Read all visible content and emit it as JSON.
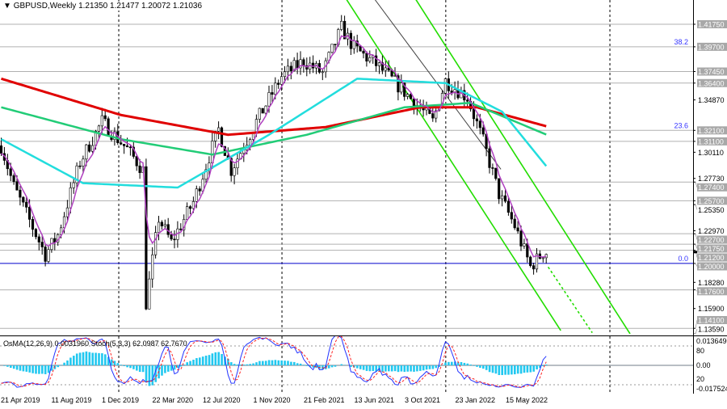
{
  "header": {
    "symbol": "GBPUSD,Weekly",
    "ohlc": "1.21350 1.21477 1.20072 1.21036"
  },
  "oscillator": {
    "title": "OsMA(12,26,9) 0.0031960  Stoch(5,3,3) 62.0987 62.7670",
    "axis_labels": [
      "0.0136490",
      "80",
      "0.00",
      "20",
      "-0.0175240"
    ]
  },
  "colors": {
    "bull": "#ffffff",
    "bear": "#000000",
    "ma_red": "#e00000",
    "ma_green": "#22cc77",
    "ma_cyan": "#22dddd",
    "ma_purple": "#b040c0",
    "channel": "#22dd00",
    "level": "#b0b0b0",
    "zero_line": "#0000cc",
    "hist": "#22c8f0"
  },
  "chart_data": {
    "type": "candlestick",
    "title": "GBPUSD,Weekly",
    "ylim": [
      1.1359,
      1.433
    ],
    "x_unit": "weeks since 21 Apr 2019",
    "time_labels": [
      "21 Apr 2019",
      "11 Aug 2019",
      "1 Dec 2019",
      "22 Mar 2020",
      "12 Jul 2020",
      "1 Nov 2020",
      "21 Feb 2021",
      "13 Jun 2021",
      "3 Oct 2021",
      "23 Jan 2022",
      "15 May 2022"
    ],
    "price_ticks": [
      "1.34870",
      "1.30110",
      "1.27730",
      "1.25350",
      "1.22970",
      "1.18280",
      "1.15900",
      "1.13590"
    ],
    "levels": [
      {
        "price": 1.4175,
        "label": "1.41750"
      },
      {
        "price": 1.397,
        "label": "1.39700"
      },
      {
        "price": 1.3745,
        "label": "1.37450"
      },
      {
        "price": 1.364,
        "label": "1.36400"
      },
      {
        "price": 1.321,
        "label": "1.32100"
      },
      {
        "price": 1.311,
        "label": "1.31100"
      },
      {
        "price": 1.274,
        "label": "1.27400"
      },
      {
        "price": 1.257,
        "label": "1.25700"
      },
      {
        "price": 1.227,
        "label": "1.22700"
      },
      {
        "price": 1.2175,
        "label": "1.21750"
      },
      {
        "price": 1.212,
        "label": "1.21200"
      },
      {
        "price": 1.2,
        "label": "1.20000"
      },
      {
        "price": 1.176,
        "label": "1.17600"
      },
      {
        "price": 1.141,
        "label": "1.14100"
      }
    ],
    "current_price": "1.21036",
    "fib_labels": [
      {
        "price": 1.397,
        "label": "38.2"
      },
      {
        "price": 1.321,
        "label": "23.6"
      },
      {
        "price": 1.2,
        "label": "0.0"
      }
    ],
    "price_path": [
      [
        1,
        1.307
      ],
      [
        5,
        1.27
      ],
      [
        15,
        1.208
      ],
      [
        19,
        1.226
      ],
      [
        26,
        1.292
      ],
      [
        33,
        1.329
      ],
      [
        41,
        1.304
      ],
      [
        46,
        1.285
      ],
      [
        47,
        1.164
      ],
      [
        51,
        1.241
      ],
      [
        55,
        1.219
      ],
      [
        62,
        1.256
      ],
      [
        70,
        1.322
      ],
      [
        74,
        1.285
      ],
      [
        82,
        1.329
      ],
      [
        90,
        1.37
      ],
      [
        97,
        1.384
      ],
      [
        103,
        1.373
      ],
      [
        109,
        1.414
      ],
      [
        113,
        1.396
      ],
      [
        120,
        1.381
      ],
      [
        128,
        1.359
      ],
      [
        133,
        1.344
      ],
      [
        138,
        1.329
      ],
      [
        142,
        1.366
      ],
      [
        149,
        1.351
      ],
      [
        154,
        1.311
      ],
      [
        159,
        1.263
      ],
      [
        164,
        1.234
      ],
      [
        169,
        1.197
      ],
      [
        173,
        1.21
      ]
    ],
    "ma_red": [
      [
        0,
        1.368
      ],
      [
        38,
        1.335
      ],
      [
        72,
        1.317
      ],
      [
        103,
        1.324
      ],
      [
        133,
        1.342
      ],
      [
        151,
        1.342
      ],
      [
        174,
        1.324
      ]
    ],
    "ma_green": [
      [
        0,
        1.342
      ],
      [
        38,
        1.313
      ],
      [
        67,
        1.299
      ],
      [
        97,
        1.317
      ],
      [
        128,
        1.342
      ],
      [
        149,
        1.346
      ],
      [
        174,
        1.316
      ]
    ],
    "ma_cyan": [
      [
        0,
        1.313
      ],
      [
        26,
        1.273
      ],
      [
        56,
        1.269
      ],
      [
        85,
        1.317
      ],
      [
        113,
        1.368
      ],
      [
        141,
        1.364
      ],
      [
        159,
        1.338
      ],
      [
        174,
        1.285
      ]
    ],
    "channels": [
      {
        "from": [
          110,
          1.44
        ],
        "to": [
          178,
          1.139
        ],
        "style": "solid",
        "color": "green"
      },
      {
        "from": [
          132,
          1.44
        ],
        "to": [
          200,
          1.136
        ],
        "style": "solid",
        "color": "green"
      },
      {
        "from": [
          119,
          1.44
        ],
        "to": [
          159,
          1.2856
        ],
        "style": "solid",
        "color": "gray"
      },
      {
        "from": [
          174,
          1.1968
        ],
        "to": [
          188,
          1.137
        ],
        "style": "dashed",
        "color": "green"
      }
    ],
    "period_separators_weeks": [
      37.7,
      89.5,
      141.5,
      193.6
    ]
  }
}
